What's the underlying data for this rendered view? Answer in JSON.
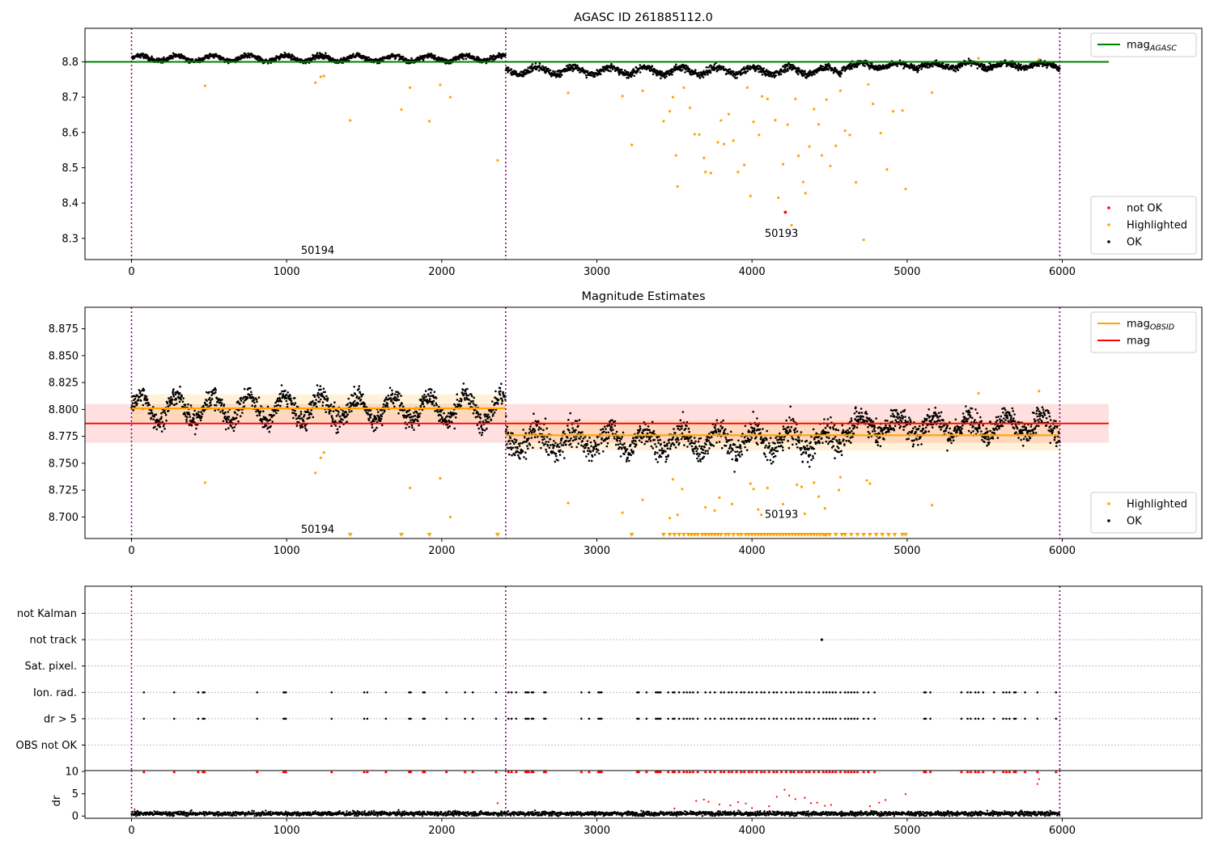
{
  "figure": {
    "background": "#ffffff"
  },
  "colors": {
    "ok": "#000000",
    "highlighted": "#ffa500",
    "not_ok": "#ff0000",
    "mag_agasc": "#008000",
    "mag": "#ff0000",
    "mag_obsid": "#ffa500",
    "obsid_line": "#800080",
    "grid": "#b0b0b0"
  },
  "chart_data": [
    {
      "id": "p1",
      "type": "scatter",
      "title": "AGASC ID 261885112.0",
      "xlim": [
        -300,
        6900
      ],
      "ylim": [
        8.24,
        8.895
      ],
      "xticks": [
        0,
        1000,
        2000,
        3000,
        4000,
        5000,
        6000
      ],
      "yticks": [
        8.3,
        8.4,
        8.5,
        8.6,
        8.7,
        8.8
      ],
      "ytick_labels": [
        "8.3",
        "8.4",
        "8.5",
        "8.6",
        "8.7",
        "8.8"
      ],
      "obsid_boundaries": [
        0,
        2412,
        5984
      ],
      "obsid_labels": [
        {
          "text": "50194",
          "x": 1200,
          "y": 8.268
        },
        {
          "text": "50193",
          "x": 4190,
          "y": 8.316
        }
      ],
      "mag_agasc": {
        "value": 8.8,
        "x": [
          -300,
          6300
        ]
      },
      "ok_segments": [
        {
          "x0": 0,
          "x1": 2412,
          "mean": 8.81,
          "amp": 0.008,
          "noise": 0.005,
          "n": 1150
        },
        {
          "x0": 2412,
          "x1": 4580,
          "mean": 8.775,
          "amp": 0.01,
          "noise": 0.007,
          "n": 1000
        },
        {
          "x0": 4580,
          "x1": 5984,
          "mean": 8.79,
          "amp": 0.007,
          "noise": 0.006,
          "n": 700
        }
      ],
      "highlighted": [
        [
          475,
          8.732
        ],
        [
          1185,
          8.741
        ],
        [
          1220,
          8.758
        ],
        [
          1240,
          8.76
        ],
        [
          1410,
          8.634
        ],
        [
          1740,
          8.665
        ],
        [
          1795,
          8.727
        ],
        [
          1920,
          8.632
        ],
        [
          1990,
          8.735
        ],
        [
          2055,
          8.7
        ],
        [
          2360,
          8.521
        ],
        [
          2815,
          8.712
        ],
        [
          3165,
          8.703
        ],
        [
          3225,
          8.565
        ],
        [
          3295,
          8.718
        ],
        [
          3430,
          8.632
        ],
        [
          3470,
          8.66
        ],
        [
          3490,
          8.7
        ],
        [
          3510,
          8.535
        ],
        [
          3520,
          8.447
        ],
        [
          3560,
          8.727
        ],
        [
          3600,
          8.67
        ],
        [
          3630,
          8.595
        ],
        [
          3660,
          8.594
        ],
        [
          3690,
          8.528
        ],
        [
          3700,
          8.488
        ],
        [
          3735,
          8.485
        ],
        [
          3780,
          8.572
        ],
        [
          3800,
          8.634
        ],
        [
          3820,
          8.567
        ],
        [
          3850,
          8.652
        ],
        [
          3880,
          8.577
        ],
        [
          3910,
          8.488
        ],
        [
          3950,
          8.508
        ],
        [
          3970,
          8.727
        ],
        [
          3990,
          8.42
        ],
        [
          4010,
          8.63
        ],
        [
          4045,
          8.593
        ],
        [
          4065,
          8.702
        ],
        [
          4100,
          8.695
        ],
        [
          4150,
          8.635
        ],
        [
          4170,
          8.415
        ],
        [
          4200,
          8.51
        ],
        [
          4230,
          8.622
        ],
        [
          4255,
          8.337
        ],
        [
          4280,
          8.695
        ],
        [
          4300,
          8.534
        ],
        [
          4330,
          8.46
        ],
        [
          4345,
          8.428
        ],
        [
          4370,
          8.56
        ],
        [
          4400,
          8.666
        ],
        [
          4430,
          8.623
        ],
        [
          4450,
          8.535
        ],
        [
          4480,
          8.693
        ],
        [
          4505,
          8.505
        ],
        [
          4540,
          8.562
        ],
        [
          4570,
          8.718
        ],
        [
          4600,
          8.605
        ],
        [
          4630,
          8.593
        ],
        [
          4670,
          8.459
        ],
        [
          4720,
          8.296
        ],
        [
          4750,
          8.736
        ],
        [
          4780,
          8.681
        ],
        [
          4830,
          8.598
        ],
        [
          4870,
          8.495
        ],
        [
          4910,
          8.66
        ],
        [
          4970,
          8.662
        ],
        [
          4990,
          8.44
        ],
        [
          5160,
          8.713
        ],
        [
          5460,
          8.81
        ],
        [
          5850,
          8.807
        ]
      ],
      "not_ok": [
        [
          4215,
          8.374
        ]
      ],
      "legends": [
        {
          "position": "top-right",
          "entries": [
            {
              "label": "mag",
              "sub": "AGASC",
              "kind": "line",
              "color": "#008000"
            }
          ]
        },
        {
          "position": "bottom-right",
          "entries": [
            {
              "label": "not OK",
              "kind": "point",
              "color": "#ff0000"
            },
            {
              "label": "Highlighted",
              "kind": "point",
              "color": "#ffa500"
            },
            {
              "label": "OK",
              "kind": "point",
              "color": "#000000"
            }
          ]
        }
      ]
    },
    {
      "id": "p2",
      "type": "scatter",
      "title": "Magnitude Estimates",
      "xlim": [
        -300,
        6900
      ],
      "ylim": [
        8.68,
        8.895
      ],
      "xticks": [
        0,
        1000,
        2000,
        3000,
        4000,
        5000,
        6000
      ],
      "yticks": [
        8.7,
        8.725,
        8.75,
        8.775,
        8.8,
        8.825,
        8.85,
        8.875
      ],
      "ytick_labels": [
        "8.700",
        "8.725",
        "8.750",
        "8.775",
        "8.800",
        "8.825",
        "8.850",
        "8.875"
      ],
      "obsid_boundaries": [
        0,
        2412,
        5984
      ],
      "obsid_labels": [
        {
          "text": "50194",
          "x": 1200,
          "y": 8.689
        },
        {
          "text": "50193",
          "x": 4190,
          "y": 8.703
        }
      ],
      "mag": {
        "value": 8.787,
        "band": [
          8.769,
          8.805
        ],
        "x": [
          -300,
          6300
        ]
      },
      "mag_obsid": [
        {
          "x0": 0,
          "x1": 2412,
          "value": 8.801,
          "band": [
            8.788,
            8.814
          ]
        },
        {
          "x0": 2412,
          "x1": 5984,
          "value": 8.776,
          "band": [
            8.762,
            8.79
          ]
        }
      ],
      "ok_segments": [
        {
          "x0": 0,
          "x1": 2412,
          "mean": 8.801,
          "amp": 0.012,
          "noise": 0.007,
          "n": 1150
        },
        {
          "x0": 2412,
          "x1": 4580,
          "mean": 8.771,
          "amp": 0.01,
          "noise": 0.009,
          "n": 1000
        },
        {
          "x0": 4580,
          "x1": 5984,
          "mean": 8.785,
          "amp": 0.008,
          "noise": 0.008,
          "n": 700
        }
      ],
      "highlighted": [
        [
          475,
          8.732
        ],
        [
          1185,
          8.741
        ],
        [
          1220,
          8.755
        ],
        [
          1240,
          8.76
        ],
        [
          1795,
          8.727
        ],
        [
          1990,
          8.736
        ],
        [
          2055,
          8.7
        ],
        [
          2815,
          8.713
        ],
        [
          3165,
          8.704
        ],
        [
          3295,
          8.716
        ],
        [
          3470,
          8.699
        ],
        [
          3490,
          8.735
        ],
        [
          3520,
          8.702
        ],
        [
          3550,
          8.726
        ],
        [
          3700,
          8.709
        ],
        [
          3760,
          8.706
        ],
        [
          3790,
          8.718
        ],
        [
          3870,
          8.712
        ],
        [
          3990,
          8.731
        ],
        [
          4010,
          8.726
        ],
        [
          4040,
          8.707
        ],
        [
          4060,
          8.702
        ],
        [
          4100,
          8.727
        ],
        [
          4200,
          8.712
        ],
        [
          4290,
          8.73
        ],
        [
          4320,
          8.728
        ],
        [
          4340,
          8.703
        ],
        [
          4400,
          8.732
        ],
        [
          4430,
          8.719
        ],
        [
          4470,
          8.708
        ],
        [
          4560,
          8.725
        ],
        [
          4570,
          8.737
        ],
        [
          4740,
          8.734
        ],
        [
          4760,
          8.731
        ],
        [
          5160,
          8.711
        ],
        [
          5460,
          8.815
        ],
        [
          5850,
          8.817
        ]
      ],
      "clipped_low_x": [
        1410,
        1740,
        1920,
        2360,
        3225,
        3430,
        3470,
        3500,
        3530,
        3560,
        3590,
        3610,
        3630,
        3650,
        3680,
        3700,
        3720,
        3740,
        3760,
        3780,
        3800,
        3830,
        3850,
        3880,
        3910,
        3930,
        3960,
        3980,
        4000,
        4020,
        4040,
        4060,
        4080,
        4100,
        4120,
        4140,
        4160,
        4180,
        4200,
        4220,
        4240,
        4260,
        4280,
        4300,
        4320,
        4340,
        4360,
        4380,
        4400,
        4420,
        4440,
        4460,
        4470,
        4480,
        4500,
        4540,
        4580,
        4600,
        4640,
        4680,
        4720,
        4760,
        4800,
        4840,
        4880,
        4920,
        4970,
        4990
      ],
      "legends": [
        {
          "position": "top-right",
          "entries": [
            {
              "label": "mag",
              "sub": "OBSID",
              "kind": "line",
              "color": "#ffa500"
            },
            {
              "label": "mag",
              "kind": "line",
              "color": "#ff0000"
            }
          ]
        },
        {
          "position": "bottom-right",
          "entries": [
            {
              "label": "Highlighted",
              "kind": "point",
              "color": "#ffa500"
            },
            {
              "label": "OK",
              "kind": "point",
              "color": "#000000"
            }
          ]
        }
      ]
    },
    {
      "id": "p3",
      "type": "scatter",
      "xlim": [
        -300,
        6900
      ],
      "categories": [
        "OBS not OK",
        "dr > 5",
        "Ion. rad.",
        "Sat. pixel.",
        "not track",
        "not Kalman"
      ],
      "obsid_boundaries": [
        0,
        2412,
        5984
      ],
      "flag_x": [
        80,
        275,
        430,
        460,
        470,
        810,
        980,
        990,
        995,
        1290,
        1500,
        1520,
        1640,
        1790,
        1800,
        1880,
        1890,
        2030,
        2150,
        2200,
        2350,
        2430,
        2450,
        2480,
        2540,
        2550,
        2560,
        2580,
        2590,
        2660,
        2670,
        2900,
        2950,
        3010,
        3020,
        3030,
        3260,
        3270,
        3320,
        3380,
        3390,
        3400,
        3410,
        3460,
        3490,
        3500,
        3530,
        3560,
        3580,
        3600,
        3620,
        3650,
        3700,
        3730,
        3760,
        3800,
        3820,
        3850,
        3870,
        3900,
        3930,
        3950,
        3980,
        4000,
        4030,
        4060,
        4080,
        4110,
        4140,
        4160,
        4190,
        4220,
        4250,
        4270,
        4300,
        4320,
        4350,
        4370,
        4400,
        4430,
        4460,
        4480,
        4500,
        4520,
        4540,
        4570,
        4600,
        4620,
        4640,
        4660,
        4680,
        4720,
        4750,
        4790,
        5110,
        5120,
        5150,
        5350,
        5390,
        5410,
        5440,
        5460,
        5490,
        5560,
        5620,
        5640,
        5660,
        5690,
        5700,
        5760,
        5840,
        5960
      ],
      "not_track_x": [
        4450
      ]
    },
    {
      "id": "p4",
      "type": "scatter",
      "xlim": [
        -300,
        6900
      ],
      "ylim": [
        -0.5,
        10.2
      ],
      "ylabel": "dr",
      "xticks": [
        0,
        1000,
        2000,
        3000,
        4000,
        5000,
        6000
      ],
      "yticks": [
        0,
        5,
        10
      ],
      "obsid_boundaries": [
        0,
        2412,
        5984
      ],
      "base": {
        "x0": 0,
        "x1": 5984,
        "mean": 0.55,
        "noise": 0.35,
        "n": 2600
      },
      "spread_points": [
        [
          20,
          1.5
        ],
        [
          2360,
          2.9
        ],
        [
          3500,
          1.7
        ],
        [
          3640,
          3.4
        ],
        [
          3690,
          3.7
        ],
        [
          3720,
          3.2
        ],
        [
          3790,
          2.6
        ],
        [
          3860,
          2.4
        ],
        [
          3910,
          3.1
        ],
        [
          3960,
          2.8
        ],
        [
          4000,
          1.8
        ],
        [
          4110,
          2.2
        ],
        [
          4160,
          4.3
        ],
        [
          4210,
          5.9
        ],
        [
          4240,
          4.6
        ],
        [
          4280,
          3.8
        ],
        [
          4340,
          4.1
        ],
        [
          4380,
          2.9
        ],
        [
          4420,
          3.0
        ],
        [
          4470,
          2.3
        ],
        [
          4510,
          2.5
        ],
        [
          4760,
          2.2
        ],
        [
          4820,
          3.0
        ],
        [
          4860,
          3.6
        ],
        [
          4990,
          4.9
        ],
        [
          5840,
          7.2
        ],
        [
          5850,
          8.3
        ]
      ],
      "flag_x_ref": "p3.flag_x"
    }
  ]
}
